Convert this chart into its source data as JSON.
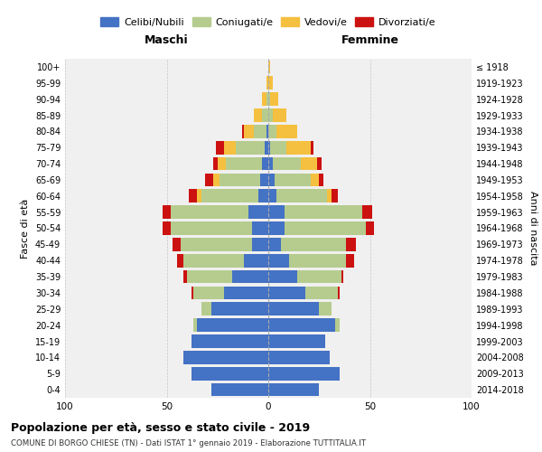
{
  "title": "Popolazione per età, sesso e stato civile - 2019",
  "subtitle": "COMUNE DI BORGO CHIESE (TN) - Dati ISTAT 1° gennaio 2019 - Elaborazione TUTTITALIA.IT",
  "xlabel_left": "Maschi",
  "xlabel_right": "Femmine",
  "ylabel_left": "Fasce di età",
  "ylabel_right": "Anni di nascita",
  "legend_labels": [
    "Celibi/Nubili",
    "Coniugati/e",
    "Vedovi/e",
    "Divorziati/e"
  ],
  "colors": [
    "#4472c4",
    "#b5cc8e",
    "#f5c040",
    "#cc1111"
  ],
  "age_groups": [
    "0-4",
    "5-9",
    "10-14",
    "15-19",
    "20-24",
    "25-29",
    "30-34",
    "35-39",
    "40-44",
    "45-49",
    "50-54",
    "55-59",
    "60-64",
    "65-69",
    "70-74",
    "75-79",
    "80-84",
    "85-89",
    "90-94",
    "95-99",
    "100+"
  ],
  "birth_years": [
    "2014-2018",
    "2009-2013",
    "2004-2008",
    "1999-2003",
    "1994-1998",
    "1989-1993",
    "1984-1988",
    "1979-1983",
    "1974-1978",
    "1969-1973",
    "1964-1968",
    "1959-1963",
    "1954-1958",
    "1949-1953",
    "1944-1948",
    "1939-1943",
    "1934-1938",
    "1929-1933",
    "1924-1928",
    "1919-1923",
    "≤ 1918"
  ],
  "males": {
    "celibi": [
      28,
      38,
      42,
      38,
      35,
      28,
      22,
      18,
      12,
      8,
      8,
      10,
      5,
      4,
      3,
      2,
      1,
      0,
      0,
      0,
      0
    ],
    "coniugati": [
      0,
      0,
      0,
      0,
      2,
      5,
      15,
      22,
      30,
      35,
      40,
      38,
      28,
      20,
      18,
      14,
      6,
      3,
      1,
      0,
      0
    ],
    "vedovi": [
      0,
      0,
      0,
      0,
      0,
      0,
      0,
      0,
      0,
      0,
      0,
      0,
      2,
      3,
      4,
      6,
      5,
      4,
      2,
      1,
      0
    ],
    "divorziati": [
      0,
      0,
      0,
      0,
      0,
      0,
      1,
      2,
      3,
      4,
      4,
      4,
      4,
      4,
      2,
      4,
      1,
      0,
      0,
      0,
      0
    ]
  },
  "females": {
    "nubili": [
      25,
      35,
      30,
      28,
      33,
      25,
      18,
      14,
      10,
      6,
      8,
      8,
      4,
      3,
      2,
      1,
      0,
      0,
      0,
      0,
      0
    ],
    "coniugate": [
      0,
      0,
      0,
      0,
      2,
      6,
      16,
      22,
      28,
      32,
      40,
      38,
      25,
      18,
      14,
      8,
      4,
      2,
      1,
      0,
      0
    ],
    "vedove": [
      0,
      0,
      0,
      0,
      0,
      0,
      0,
      0,
      0,
      0,
      0,
      0,
      2,
      4,
      8,
      12,
      10,
      7,
      4,
      2,
      1
    ],
    "divorziate": [
      0,
      0,
      0,
      0,
      0,
      0,
      1,
      1,
      4,
      5,
      4,
      5,
      3,
      2,
      2,
      1,
      0,
      0,
      0,
      0,
      0
    ]
  },
  "xlim": 100,
  "background_color": "#ffffff",
  "grid_color": "#cccccc",
  "plot_bg": "#f0f0f0"
}
